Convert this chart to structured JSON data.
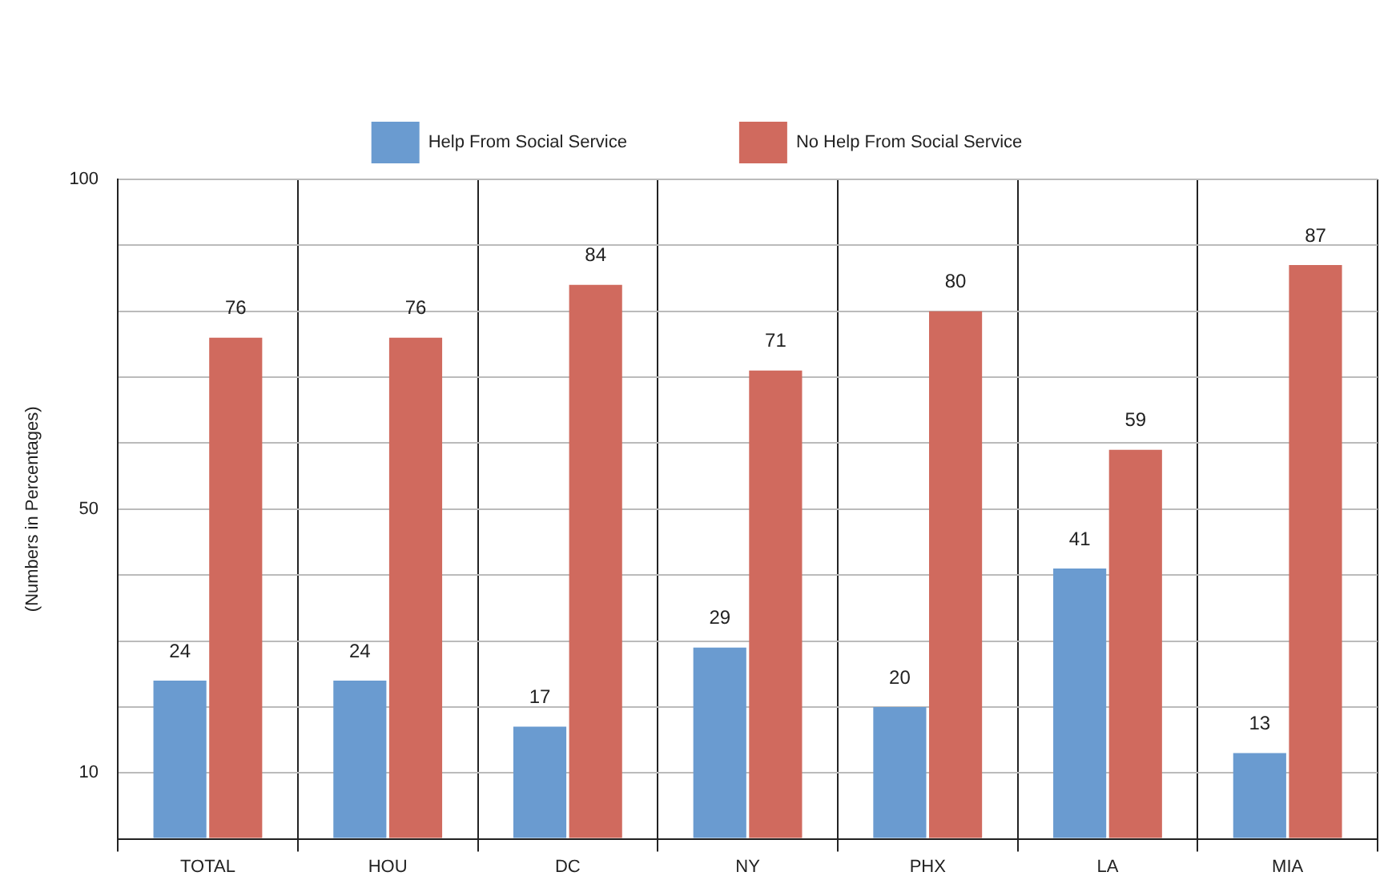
{
  "chart_data": {
    "type": "bar",
    "ylabel": "(Numbers in Percentages)",
    "categories": [
      "TOTAL",
      "HOU",
      "DC",
      "NY",
      "PHX",
      "LA",
      "MIA"
    ],
    "series": [
      {
        "name": "Help From Social Service",
        "color": "#6a9bd0",
        "values": [
          24,
          24,
          17,
          29,
          20,
          41,
          13
        ]
      },
      {
        "name": "No Help From Social Service",
        "color": "#d06a5e",
        "values": [
          76,
          76,
          84,
          71,
          80,
          59,
          87
        ]
      }
    ],
    "ylim": [
      0,
      100
    ],
    "yticks": [
      {
        "value": 0,
        "label": null
      },
      10,
      {
        "value": 20,
        "label": null
      },
      {
        "value": 30,
        "label": null
      },
      {
        "value": 40,
        "label": null
      },
      50,
      {
        "value": 60,
        "label": null
      },
      {
        "value": 70,
        "label": null
      },
      {
        "value": 80,
        "label": null
      },
      {
        "value": 90,
        "label": null
      },
      100
    ],
    "grid": true,
    "legend": "top",
    "data_labels": true
  }
}
